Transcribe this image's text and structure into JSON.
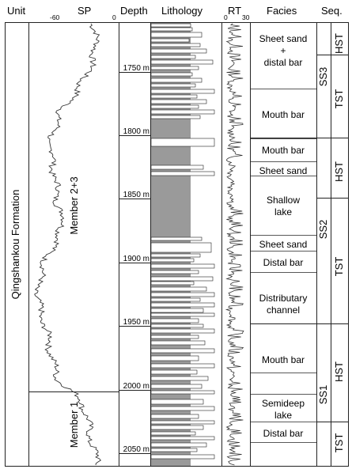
{
  "headers": {
    "unit": "Unit",
    "sp": "SP",
    "depth": "Depth",
    "lithology": "Lithology",
    "rt_prefix": "RT",
    "facies": "Facies",
    "seq": "Seq."
  },
  "sp_scale": {
    "left": "-60",
    "right": "0"
  },
  "rt_scale": {
    "left": "0",
    "right": "30"
  },
  "formation": "Qingshankou Formation",
  "members": [
    "Member 2+3",
    "Member 1"
  ],
  "depth_labels": [
    "1750 m",
    "1800 m",
    "1850 m",
    "1900 m",
    "1950 m",
    "2000 m",
    "2050 m"
  ],
  "depth_values": [
    1750,
    1800,
    1850,
    1900,
    1950,
    2000,
    2050
  ],
  "facies": [
    {
      "lines": [
        "Sheet sand",
        "+",
        "distal bar"
      ]
    },
    {
      "lines": [
        "Mouth bar"
      ]
    },
    {
      "lines": [
        "Mouth bar"
      ]
    },
    {
      "lines": [
        "Sheet sand"
      ]
    },
    {
      "lines": [
        "Shallow",
        "lake"
      ]
    },
    {
      "lines": [
        "Sheet sand"
      ]
    },
    {
      "lines": [
        "Distal bar"
      ]
    },
    {
      "lines": [
        "Distributary",
        "channel"
      ]
    },
    {
      "lines": [
        "Mouth bar"
      ]
    },
    {
      "lines": [
        "Semideep",
        "lake"
      ]
    },
    {
      "lines": [
        "Distal bar"
      ]
    }
  ],
  "sequences": [
    "SS3",
    "SS2",
    "SS1"
  ],
  "systems_tracts": [
    "HST",
    "TST",
    "HST",
    "TST",
    "HST",
    "TST"
  ],
  "colors": {
    "mudstone": "#9a9a9a",
    "sandstone": "#ffffff",
    "line": "#222222"
  }
}
